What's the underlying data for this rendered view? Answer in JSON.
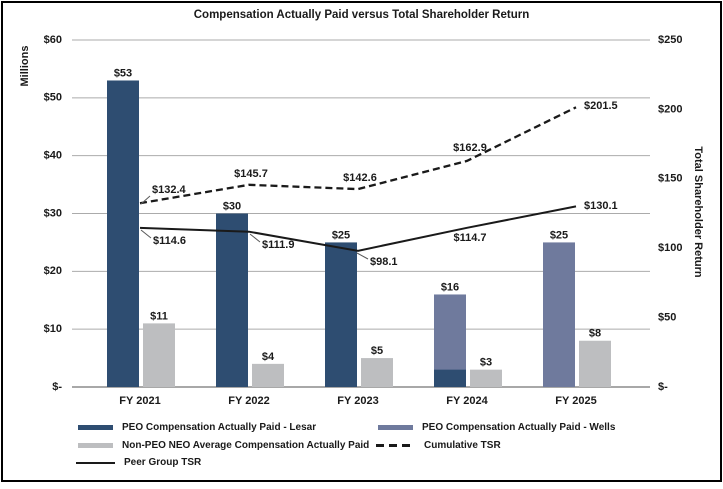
{
  "chart_data": {
    "type": "combo-bar-line",
    "title": "Compensation Actually Paid versus Total Shareholder Return",
    "categories": [
      "FY 2021",
      "FY 2022",
      "FY 2023",
      "FY 2024",
      "FY 2025"
    ],
    "bar_series": [
      {
        "name": "PEO Compensation Actually Paid - Lesar",
        "color": "#2E4D71",
        "values": [
          53,
          30,
          25,
          3,
          null
        ],
        "labels": [
          "$53",
          "$30",
          "$25",
          null,
          null
        ]
      },
      {
        "name": "PEO Compensation Actually Paid - Wells",
        "color": "#6F7A9D",
        "values": [
          null,
          null,
          null,
          16,
          25
        ],
        "labels": [
          null,
          null,
          null,
          "$16",
          "$25"
        ]
      },
      {
        "name": "Non-PEO NEO Average Compensation Actually Paid",
        "color": "#BDBEC0",
        "values": [
          11,
          4,
          5,
          3,
          8
        ],
        "labels": [
          "$11",
          "$4",
          "$5",
          "$3",
          "$8"
        ]
      }
    ],
    "line_series": [
      {
        "name": "Cumulative TSR",
        "style": "dashed",
        "color": "#1a1a1a",
        "axis": "right",
        "values": [
          132.4,
          145.7,
          142.6,
          162.9,
          201.5
        ],
        "labels": [
          "$132.4",
          "$145.7",
          "$142.6",
          "$162.9",
          "$201.5"
        ]
      },
      {
        "name": "Peer Group TSR",
        "style": "solid",
        "color": "#1a1a1a",
        "axis": "right",
        "values": [
          114.6,
          111.9,
          98.1,
          114.7,
          130.1
        ],
        "labels": [
          "$114.6",
          "$111.9",
          "$98.1",
          "$114.7",
          "$130.1"
        ]
      }
    ],
    "left_axis": {
      "title": "Millions",
      "min": 0,
      "max": 60,
      "ticks": [
        "$-",
        "$10",
        "$20",
        "$30",
        "$40",
        "$50",
        "$60"
      ]
    },
    "right_axis": {
      "title": "Total Shareholder Return",
      "min": 0,
      "max": 250,
      "ticks": [
        "$-",
        "$50",
        "$100",
        "$150",
        "$200",
        "$250"
      ]
    },
    "grid": true,
    "legend_position": "bottom",
    "style": {
      "grid_color": "#ABABAB",
      "axis_line_color": "#8C8C8C",
      "text_color": "#1A1A1A",
      "leader_color": "#595959",
      "frame_color": "#000000",
      "background": "#FFFFFF"
    }
  }
}
